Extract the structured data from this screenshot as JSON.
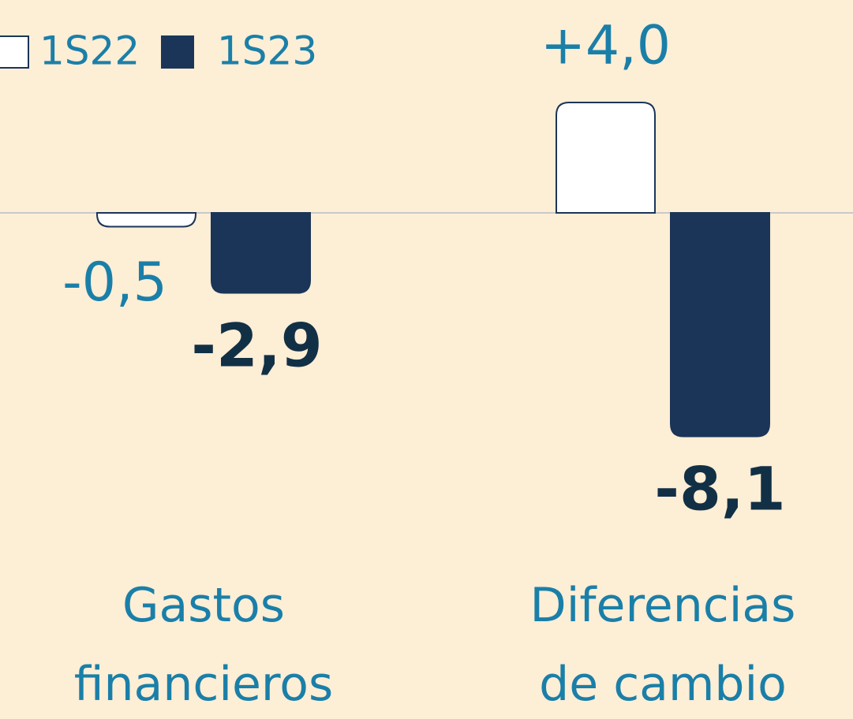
{
  "chart_data": {
    "type": "bar",
    "categories": [
      "Gastos financieros",
      "Diferencias de cambio"
    ],
    "series": [
      {
        "name": "1S22",
        "color": "#ffffff",
        "values": [
          -0.5,
          4.0
        ],
        "value_labels": [
          "-0,5",
          "+4,0"
        ]
      },
      {
        "name": "1S23",
        "color": "#1b3559",
        "values": [
          -2.9,
          -8.1
        ],
        "value_labels": [
          "-2,9",
          "-8,1"
        ]
      }
    ],
    "ylim": [
      -9.5,
      5.5
    ],
    "grid": false
  }
}
